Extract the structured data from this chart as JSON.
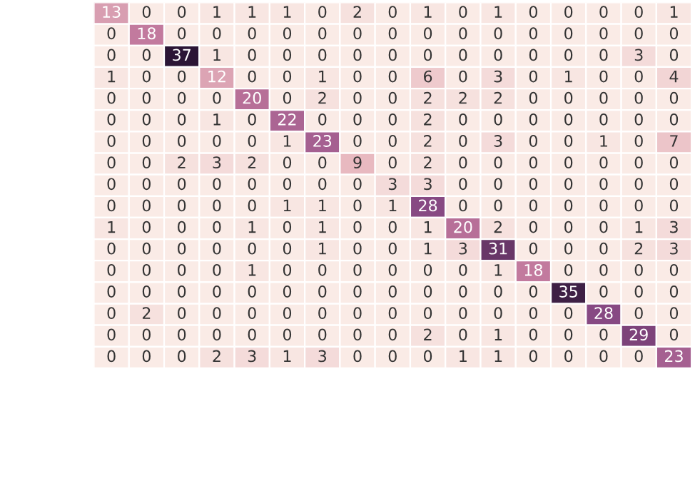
{
  "chart_data": {
    "type": "heatmap",
    "categories": [
      null,
      null,
      null,
      null,
      null,
      null,
      null,
      null,
      null,
      null,
      null,
      null,
      null,
      null,
      null,
      null,
      null
    ],
    "y_categories": [
      null,
      null,
      null,
      null,
      null,
      null,
      null,
      null,
      null,
      null,
      null,
      null,
      null,
      null,
      null,
      null,
      null
    ],
    "cells": [
      [
        13,
        0,
        0,
        1,
        1,
        1,
        0,
        2,
        0,
        1,
        0,
        1,
        0,
        0,
        0,
        0,
        1
      ],
      [
        0,
        18,
        0,
        0,
        0,
        0,
        0,
        0,
        0,
        0,
        0,
        0,
        0,
        0,
        0,
        0,
        0
      ],
      [
        0,
        0,
        37,
        1,
        0,
        0,
        0,
        0,
        0,
        0,
        0,
        0,
        0,
        0,
        0,
        3,
        0
      ],
      [
        1,
        0,
        0,
        12,
        0,
        0,
        1,
        0,
        0,
        6,
        0,
        3,
        0,
        1,
        0,
        0,
        4
      ],
      [
        0,
        0,
        0,
        0,
        20,
        0,
        2,
        0,
        0,
        2,
        2,
        2,
        0,
        0,
        0,
        0,
        0
      ],
      [
        0,
        0,
        0,
        1,
        0,
        22,
        0,
        0,
        0,
        2,
        0,
        0,
        0,
        0,
        0,
        0,
        0
      ],
      [
        0,
        0,
        0,
        0,
        0,
        1,
        23,
        0,
        0,
        2,
        0,
        3,
        0,
        0,
        1,
        0,
        7
      ],
      [
        0,
        0,
        2,
        3,
        2,
        0,
        0,
        9,
        0,
        2,
        0,
        0,
        0,
        0,
        0,
        0,
        0
      ],
      [
        0,
        0,
        0,
        0,
        0,
        0,
        0,
        0,
        3,
        3,
        0,
        0,
        0,
        0,
        0,
        0,
        0
      ],
      [
        0,
        0,
        0,
        0,
        0,
        1,
        1,
        0,
        1,
        28,
        0,
        0,
        0,
        0,
        0,
        0,
        0
      ],
      [
        1,
        0,
        0,
        0,
        1,
        0,
        1,
        0,
        0,
        1,
        20,
        2,
        0,
        0,
        0,
        1,
        3
      ],
      [
        0,
        0,
        0,
        0,
        0,
        0,
        1,
        0,
        0,
        1,
        3,
        31,
        0,
        0,
        0,
        2,
        3
      ],
      [
        0,
        0,
        0,
        0,
        1,
        0,
        0,
        0,
        0,
        0,
        0,
        1,
        18,
        0,
        0,
        0,
        0
      ],
      [
        0,
        0,
        0,
        0,
        0,
        0,
        0,
        0,
        0,
        0,
        0,
        0,
        0,
        35,
        0,
        0,
        0
      ],
      [
        0,
        2,
        0,
        0,
        0,
        0,
        0,
        0,
        0,
        0,
        0,
        0,
        0,
        0,
        28,
        0,
        0
      ],
      [
        0,
        0,
        0,
        0,
        0,
        0,
        0,
        0,
        0,
        2,
        0,
        1,
        0,
        0,
        0,
        29,
        0
      ],
      [
        0,
        0,
        0,
        2,
        3,
        1,
        3,
        0,
        0,
        0,
        1,
        1,
        0,
        0,
        0,
        0,
        23
      ]
    ],
    "data_labels": true
  }
}
